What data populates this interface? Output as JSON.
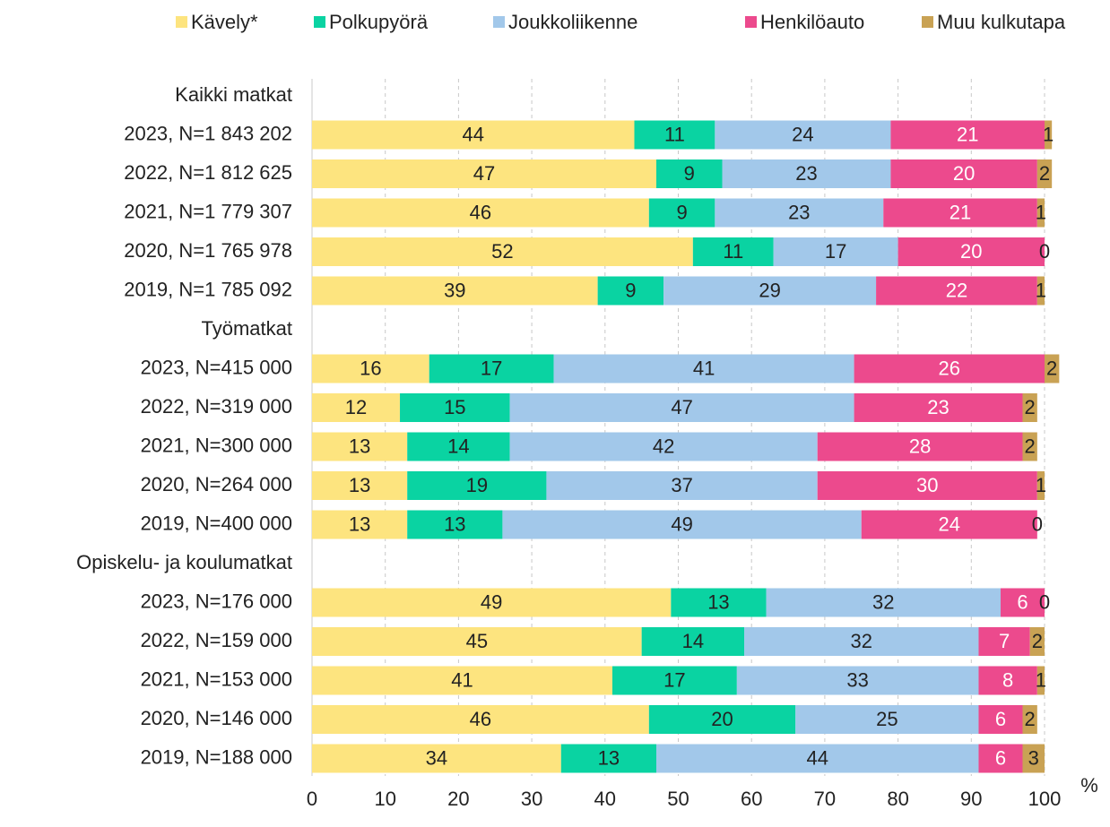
{
  "chart_data": {
    "type": "stacked_barh",
    "x_label": "%",
    "categories": [
      "Kaikki matkat",
      "2023, N=1 843 202",
      "2022, N=1 812 625",
      "2021, N=1 779 307",
      "2020, N=1 765 978",
      "2019, N=1 785 092",
      "Työmatkat",
      "2023, N=415 000",
      "2022, N=319 000",
      "2021, N=300 000",
      "2020, N=264 000",
      "2019, N=400 000",
      "Opiskelu- ja koulumatkat",
      "2023, N=176 000",
      "2022, N=159 000",
      "2021, N=153 000",
      "2020, N=146 000",
      "2019, N=188 000"
    ],
    "series": [
      {
        "name": "Kävely*",
        "color": "#fde47f",
        "label_color": "#222222",
        "values": [
          null,
          44,
          47,
          46,
          52,
          39,
          null,
          16,
          12,
          13,
          13,
          13,
          null,
          49,
          45,
          41,
          46,
          34
        ]
      },
      {
        "name": "Polkupyörä",
        "color": "#0ad3a2",
        "label_color": "#222222",
        "values": [
          null,
          11,
          9,
          9,
          11,
          9,
          null,
          17,
          15,
          14,
          19,
          13,
          null,
          13,
          14,
          17,
          20,
          13
        ]
      },
      {
        "name": "Joukkoliikenne",
        "color": "#a2c8ea",
        "label_color": "#222222",
        "values": [
          null,
          24,
          23,
          23,
          17,
          29,
          null,
          41,
          47,
          42,
          37,
          49,
          null,
          32,
          32,
          33,
          25,
          44
        ]
      },
      {
        "name": "Henkilöauto",
        "color": "#ec4a8d",
        "label_color": "#ffffff",
        "values": [
          null,
          21,
          20,
          21,
          20,
          22,
          null,
          26,
          23,
          28,
          30,
          24,
          null,
          6,
          7,
          8,
          6,
          6
        ]
      },
      {
        "name": "Muu kulkutapa",
        "color": "#c9a254",
        "label_color": "#222222",
        "values": [
          null,
          1,
          2,
          1,
          0,
          1,
          null,
          2,
          2,
          2,
          1,
          0,
          null,
          0,
          2,
          1,
          2,
          3
        ]
      }
    ],
    "xlim": [
      0,
      100
    ],
    "xticks": [
      0,
      10,
      20,
      30,
      40,
      50,
      60,
      70,
      80,
      90,
      100
    ],
    "grid": true
  }
}
